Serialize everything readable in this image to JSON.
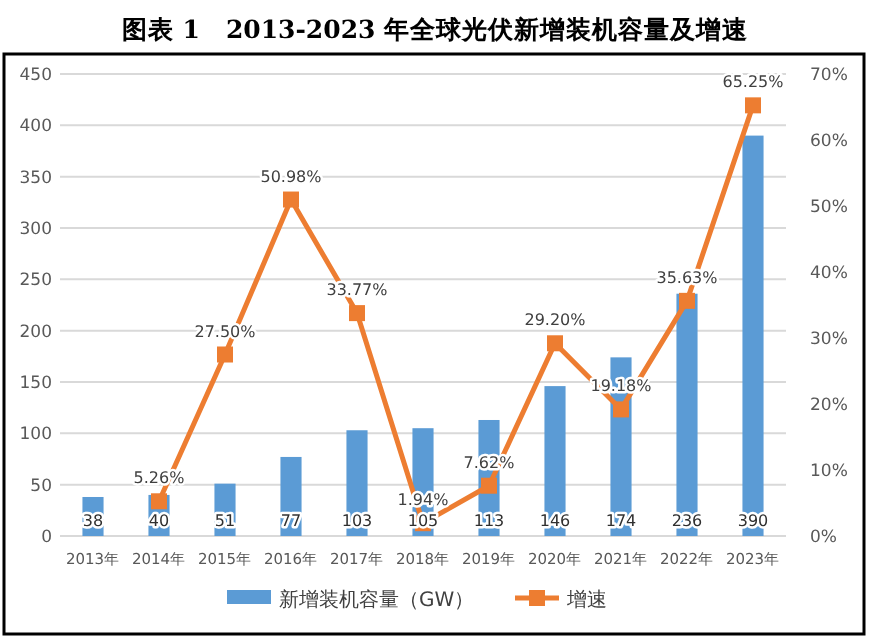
{
  "chart_data": {
    "type": "bar",
    "title": "图表 1　2013-2023 年全球光伏新增装机容量及增速",
    "categories": [
      "2013年",
      "2014年",
      "2015年",
      "2016年",
      "2017年",
      "2018年",
      "2019年",
      "2020年",
      "2021年",
      "2022年",
      "2023年"
    ],
    "series": [
      {
        "name": "新增装机容量（GW）",
        "color": "#5b9bd5",
        "values": [
          38,
          40,
          51,
          77,
          103,
          105,
          113,
          146,
          174,
          236,
          390
        ],
        "data_labels": true
      },
      {
        "name": "增速",
        "type": "line",
        "axis": "y2",
        "color": "#ed7d31",
        "marker": "square",
        "values": [
          null,
          5.26,
          27.5,
          50.98,
          33.77,
          1.94,
          7.62,
          29.2,
          19.18,
          35.63,
          65.25
        ],
        "value_labels": [
          null,
          "5.26%",
          "27.50%",
          "50.98%",
          "33.77%",
          "1.94%",
          "7.62%",
          "29.20%",
          "19.18%",
          "35.63%",
          "65.25%"
        ]
      }
    ],
    "ylim": [
      0,
      450
    ],
    "yticks": [
      0,
      50,
      100,
      150,
      200,
      250,
      300,
      350,
      400,
      450
    ],
    "y2lim": [
      0,
      70
    ],
    "y2ticks": [
      {
        "value": 0,
        "label": "0%"
      },
      {
        "value": 10,
        "label": "10%"
      },
      {
        "value": 20,
        "label": "20%"
      },
      {
        "value": 30,
        "label": "30%"
      },
      {
        "value": 40,
        "label": "40%"
      },
      {
        "value": 50,
        "label": "50%"
      },
      {
        "value": 60,
        "label": "60%"
      },
      {
        "value": 70,
        "label": "70%"
      }
    ],
    "grid": "y",
    "legend": "bottom"
  }
}
